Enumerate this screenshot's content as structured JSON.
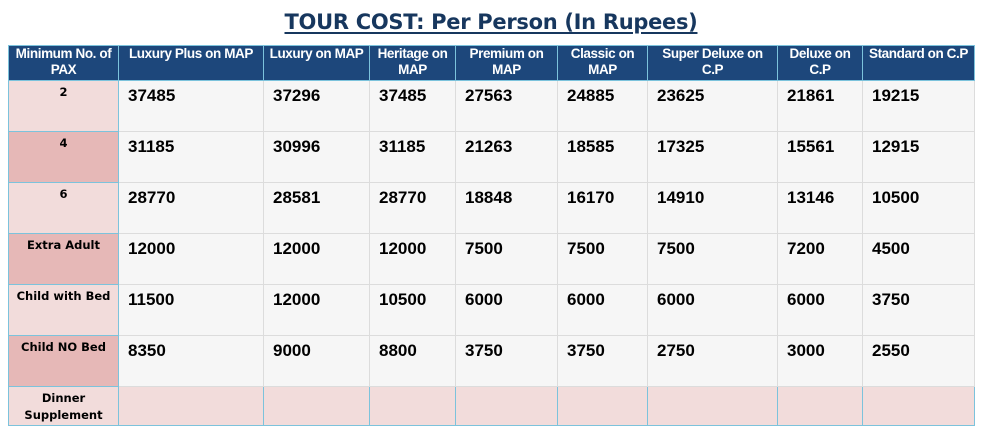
{
  "title": "TOUR COST: Per Person (In Rupees)",
  "headers": [
    "Minimum No. of PAX",
    "Luxury Plus on MAP",
    "Luxury on MAP",
    "Heritage on MAP",
    "Premium on MAP",
    "Classic on MAP",
    "Super Deluxe on C.P",
    "Deluxe on C.P",
    "Standard on C.P"
  ],
  "rows": [
    {
      "label": "2",
      "values": [
        "37485",
        "37296",
        "37485",
        "27563",
        "24885",
        "23625",
        "21861",
        "19215"
      ]
    },
    {
      "label": "4",
      "values": [
        "31185",
        "30996",
        "31185",
        "21263",
        "18585",
        "17325",
        "15561",
        "12915"
      ]
    },
    {
      "label": "6",
      "values": [
        "28770",
        "28581",
        "28770",
        "18848",
        "16170",
        "14910",
        "13146",
        "10500"
      ]
    },
    {
      "label": "Extra Adult",
      "values": [
        "12000",
        "12000",
        "12000",
        "7500",
        "7500",
        "7500",
        "7200",
        "4500"
      ]
    },
    {
      "label": "Child with Bed",
      "values": [
        "11500",
        "12000",
        "10500",
        "6000",
        "6000",
        "6000",
        "6000",
        "3750"
      ]
    },
    {
      "label": "Child NO Bed",
      "values": [
        "8350",
        "9000",
        "8800",
        "3750",
        "3750",
        "2750",
        "3000",
        "2550"
      ]
    },
    {
      "label": "Dinner Supplement",
      "values": [
        "",
        "",
        "",
        "",
        "",
        "",
        "",
        ""
      ]
    }
  ],
  "colors": {
    "header": "#1d477b",
    "title": "#17375e",
    "label_light": "#f2dcdb",
    "label_dark": "#e6b8b7",
    "border": "#7cc3dc"
  }
}
